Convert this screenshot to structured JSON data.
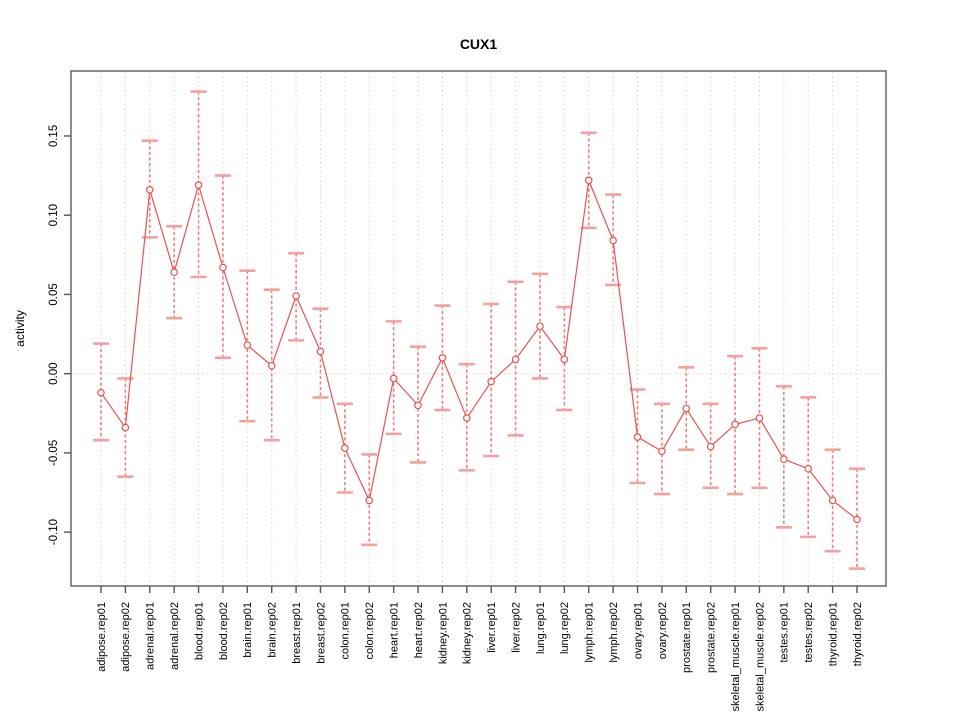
{
  "page": {
    "background": "#ffffff",
    "title": "CUX1"
  },
  "chart_data": {
    "type": "line",
    "title": "CUX1",
    "xlabel": "",
    "ylabel": "activity",
    "legend": "none",
    "grid": "dotted vertical gridline at every category; dotted horizontal line at y=0",
    "marker": "open-circle",
    "error_bars": true,
    "categories": [
      "adipose.rep01",
      "adipose.rep02",
      "adrenal.rep01",
      "adrenal.rep02",
      "blood.rep01",
      "blood.rep02",
      "brain.rep01",
      "brain.rep02",
      "breast.rep01",
      "breast.rep02",
      "colon.rep01",
      "colon.rep02",
      "heart.rep01",
      "heart.rep02",
      "kidney.rep01",
      "kidney.rep02",
      "liver.rep01",
      "liver.rep02",
      "lung.rep01",
      "lung.rep02",
      "lymph.rep01",
      "lymph.rep02",
      "ovary.rep01",
      "ovary.rep02",
      "prostate.rep01",
      "prostate.rep02",
      "skeletal_muscle.rep01",
      "skeletal_muscle.rep02",
      "testes.rep01",
      "testes.rep02",
      "thyroid.rep01",
      "thyroid.rep02"
    ],
    "series": [
      {
        "name": "CUX1",
        "values": [
          -0.012,
          -0.034,
          0.116,
          0.064,
          0.119,
          0.067,
          0.018,
          0.005,
          0.049,
          0.014,
          -0.047,
          -0.08,
          -0.003,
          -0.02,
          0.01,
          -0.028,
          -0.005,
          0.009,
          0.03,
          0.009,
          0.122,
          0.084,
          -0.04,
          -0.049,
          -0.022,
          -0.046,
          -0.032,
          -0.028,
          -0.054,
          -0.06,
          -0.08,
          -0.092
        ],
        "error_high": [
          0.019,
          -0.003,
          0.147,
          0.093,
          0.178,
          0.125,
          0.065,
          0.053,
          0.076,
          0.041,
          -0.019,
          -0.051,
          0.033,
          0.017,
          0.043,
          0.006,
          0.044,
          0.058,
          0.063,
          0.042,
          0.152,
          0.113,
          -0.01,
          -0.019,
          0.004,
          -0.019,
          0.011,
          0.016,
          -0.008,
          -0.015,
          -0.048,
          -0.06
        ],
        "error_low": [
          -0.042,
          -0.065,
          0.086,
          0.035,
          0.061,
          0.01,
          -0.03,
          -0.042,
          0.021,
          -0.015,
          -0.075,
          -0.108,
          -0.038,
          -0.056,
          -0.023,
          -0.061,
          -0.052,
          -0.039,
          -0.003,
          -0.023,
          0.092,
          0.056,
          -0.069,
          -0.076,
          -0.048,
          -0.072,
          -0.076,
          -0.072,
          -0.097,
          -0.103,
          -0.112,
          -0.123
        ]
      }
    ],
    "yticks": [
      0.15,
      0.1,
      0.05,
      0.0,
      -0.05,
      -0.1
    ],
    "ytick_labels": [
      "0.15",
      "0.10",
      "0.05",
      "0.00",
      "-0.05",
      "-0.10"
    ],
    "ylim": [
      -0.134,
      0.191
    ],
    "colors": {
      "line": "#ee5151",
      "point_stroke": "#ee5151",
      "point_fill": "#ffffff",
      "error_stem": "#f27d7d",
      "error_cap": "#f59f9f",
      "grid": "#d8d8d8",
      "zero_line": "#d8d8d8",
      "box": "#666666",
      "tick": "#555555",
      "text": "#000000"
    }
  }
}
